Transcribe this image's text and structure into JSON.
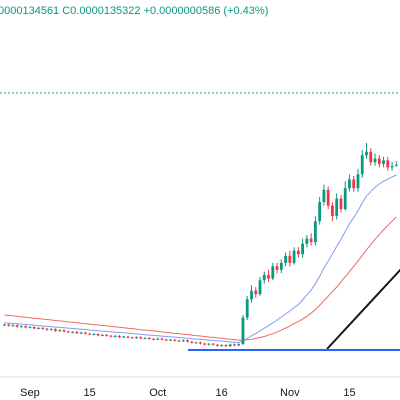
{
  "chart_data": {
    "type": "candlestick",
    "header": "0000134561 C0.0000135322 +0.0000000586 (+0.43%)",
    "categories": [
      null,
      null,
      null,
      null,
      null,
      null,
      "Sep",
      null,
      null,
      null,
      null,
      null,
      null,
      null,
      null,
      null,
      null,
      null,
      null,
      null,
      "15",
      null,
      null,
      null,
      null,
      null,
      null,
      null,
      null,
      null,
      null,
      null,
      null,
      null,
      null,
      null,
      "Oct",
      null,
      null,
      null,
      null,
      null,
      null,
      null,
      null,
      null,
      null,
      null,
      null,
      null,
      null,
      "16",
      null,
      null,
      null,
      null,
      null,
      null,
      null,
      null,
      null,
      null,
      null,
      null,
      null,
      null,
      null,
      "Nov",
      null,
      null,
      null,
      null,
      null,
      null,
      null,
      null,
      null,
      null,
      null,
      null,
      null,
      "15",
      null,
      null,
      null,
      null,
      null,
      null,
      null,
      null,
      null,
      null,
      null
    ],
    "open": [
      4.3e-06,
      4.35e-06,
      4.28e-06,
      4.31e-06,
      4.22e-06,
      4.25e-06,
      4.18e-06,
      4.2e-06,
      4.12e-06,
      4.15e-06,
      4.1e-06,
      4.05e-06,
      4.08e-06,
      3.98e-06,
      4.02e-06,
      3.95e-06,
      3.9e-06,
      3.92e-06,
      3.85e-06,
      3.88e-06,
      3.82e-06,
      3.78e-06,
      3.8e-06,
      3.72e-06,
      3.75e-06,
      3.7e-06,
      3.66e-06,
      3.69e-06,
      3.62e-06,
      3.65e-06,
      3.6e-06,
      3.58e-06,
      3.62e-06,
      3.55e-06,
      3.57e-06,
      3.52e-06,
      3.5e-06,
      3.54e-06,
      3.48e-06,
      3.45e-06,
      3.47e-06,
      3.42e-06,
      3.4e-06,
      3.44e-06,
      3.36e-06,
      3.3e-06,
      3.32e-06,
      3.25e-06,
      3.2e-06,
      3.24e-06,
      3.18e-06,
      3.12e-06,
      3.16e-06,
      3.1e-06,
      3.2e-06,
      3.15e-06,
      3.22e-06,
      4.75e-06,
      5.8e-06,
      6.3e-06,
      6.1e-06,
      6.9e-06,
      7.2e-06,
      7e-06,
      7.7e-06,
      7.5e-06,
      7.9e-06,
      8.3e-06,
      7.9e-06,
      8.6e-06,
      8.4e-06,
      9e-06,
      9.3e-06,
      9.1e-06,
      1.03e-05,
      1.14e-05,
      1.21e-05,
      1.12e-05,
      1.06e-05,
      1.16e-05,
      1.1e-05,
      1.22e-05,
      1.27e-05,
      1.22e-05,
      1.3e-05,
      1.41e-05,
      1.43e-05,
      1.37e-05,
      1.39e-05,
      1.36e-05,
      1.38e-05,
      1.34e-05,
      1.34736e-05
    ],
    "high": [
      4.4e-06,
      4.4e-06,
      4.36e-06,
      4.36e-06,
      4.3e-06,
      4.3e-06,
      4.25e-06,
      4.25e-06,
      4.2e-06,
      4.2e-06,
      4.15e-06,
      4.13e-06,
      4.13e-06,
      4.07e-06,
      4.07e-06,
      4e-06,
      3.97e-06,
      3.97e-06,
      3.93e-06,
      3.93e-06,
      3.87e-06,
      3.85e-06,
      3.85e-06,
      3.8e-06,
      3.8e-06,
      3.75e-06,
      3.74e-06,
      3.74e-06,
      3.7e-06,
      3.7e-06,
      3.65e-06,
      3.67e-06,
      3.67e-06,
      3.62e-06,
      3.62e-06,
      3.57e-06,
      3.59e-06,
      3.59e-06,
      3.53e-06,
      3.52e-06,
      3.52e-06,
      3.47e-06,
      3.49e-06,
      3.49e-06,
      3.41e-06,
      3.37e-06,
      3.37e-06,
      3.3e-06,
      3.29e-06,
      3.29e-06,
      3.23e-06,
      3.21e-06,
      3.21e-06,
      3.25e-06,
      3.25e-06,
      3.27e-06,
      4.9e-06,
      6e-06,
      6.6e-06,
      6.5e-06,
      7.1e-06,
      7.4e-06,
      7.5e-06,
      7.9e-06,
      7.9e-06,
      8.1e-06,
      8.5e-06,
      8.6e-06,
      8.8e-06,
      8.8e-06,
      9.3e-06,
      9.5e-06,
      9.6e-06,
      1.06e-05,
      1.17e-05,
      1.24e-05,
      1.23e-05,
      1.14e-05,
      1.19e-05,
      1.18e-05,
      1.26e-05,
      1.3e-05,
      1.29e-05,
      1.33e-05,
      1.44e-05,
      1.48e-05,
      1.45e-05,
      1.42e-05,
      1.41e-05,
      1.4e-05,
      1.4e-05,
      1.37e-05,
      1.375e-05
    ],
    "low": [
      4.25e-06,
      4.23e-06,
      4.23e-06,
      4.17e-06,
      4.17e-06,
      4.13e-06,
      4.13e-06,
      4.07e-06,
      4.07e-06,
      4.05e-06,
      4e-06,
      4e-06,
      3.93e-06,
      3.93e-06,
      3.9e-06,
      3.85e-06,
      3.85e-06,
      3.8e-06,
      3.8e-06,
      3.77e-06,
      3.73e-06,
      3.73e-06,
      3.67e-06,
      3.67e-06,
      3.65e-06,
      3.61e-06,
      3.61e-06,
      3.57e-06,
      3.57e-06,
      3.55e-06,
      3.53e-06,
      3.53e-06,
      3.5e-06,
      3.5e-06,
      3.47e-06,
      3.45e-06,
      3.45e-06,
      3.43e-06,
      3.4e-06,
      3.4e-06,
      3.37e-06,
      3.35e-06,
      3.35e-06,
      3.31e-06,
      3.25e-06,
      3.25e-06,
      3.2e-06,
      3.15e-06,
      3.15e-06,
      3.13e-06,
      3.07e-06,
      3.07e-06,
      3.05e-06,
      3.05e-06,
      3.1e-06,
      3.1e-06,
      3.18e-06,
      4.6e-06,
      5.6e-06,
      5.9e-06,
      6e-06,
      6.7e-06,
      6.8e-06,
      6.9e-06,
      7.3e-06,
      7.3e-06,
      7.7e-06,
      7.7e-06,
      7.8e-06,
      8.2e-06,
      8.2e-06,
      8.8e-06,
      8.9e-06,
      8.9e-06,
      1.01e-05,
      1.12e-05,
      1.1e-05,
      1.03e-05,
      1.04e-05,
      1.08e-05,
      1.09e-05,
      1.2e-05,
      1.2e-05,
      1.2e-05,
      1.28e-05,
      1.39e-05,
      1.35e-05,
      1.35e-05,
      1.34e-05,
      1.34e-05,
      1.32e-05,
      1.32e-05,
      1.34561e-05
    ],
    "close": [
      4.35e-06,
      4.28e-06,
      4.31e-06,
      4.22e-06,
      4.25e-06,
      4.18e-06,
      4.2e-06,
      4.12e-06,
      4.15e-06,
      4.1e-06,
      4.05e-06,
      4.08e-06,
      3.98e-06,
      4.02e-06,
      3.95e-06,
      3.9e-06,
      3.92e-06,
      3.85e-06,
      3.88e-06,
      3.82e-06,
      3.78e-06,
      3.8e-06,
      3.72e-06,
      3.75e-06,
      3.7e-06,
      3.66e-06,
      3.69e-06,
      3.62e-06,
      3.65e-06,
      3.6e-06,
      3.58e-06,
      3.62e-06,
      3.55e-06,
      3.57e-06,
      3.52e-06,
      3.5e-06,
      3.54e-06,
      3.48e-06,
      3.45e-06,
      3.47e-06,
      3.42e-06,
      3.4e-06,
      3.44e-06,
      3.36e-06,
      3.3e-06,
      3.32e-06,
      3.25e-06,
      3.2e-06,
      3.24e-06,
      3.18e-06,
      3.12e-06,
      3.16e-06,
      3.1e-06,
      3.2e-06,
      3.15e-06,
      3.22e-06,
      4.75e-06,
      5.8e-06,
      6.3e-06,
      6.1e-06,
      6.9e-06,
      7.2e-06,
      7e-06,
      7.7e-06,
      7.5e-06,
      7.9e-06,
      8.3e-06,
      7.9e-06,
      8.6e-06,
      8.4e-06,
      9e-06,
      9.3e-06,
      9.1e-06,
      1.03e-05,
      1.14e-05,
      1.21e-05,
      1.12e-05,
      1.06e-05,
      1.16e-05,
      1.1e-05,
      1.22e-05,
      1.27e-05,
      1.22e-05,
      1.3e-05,
      1.41e-05,
      1.43e-05,
      1.37e-05,
      1.39e-05,
      1.36e-05,
      1.38e-05,
      1.34e-05,
      1.34736e-05,
      1.35322e-05
    ],
    "up_color": "#089981",
    "down_color": "#f23645",
    "moving_averages": [
      {
        "color": "#7e9ef0",
        "values": [
          4.45e-06,
          4.43e-06,
          4.41e-06,
          4.39e-06,
          4.37e-06,
          4.35e-06,
          4.33e-06,
          4.31e-06,
          4.28e-06,
          4.26e-06,
          4.24e-06,
          4.22e-06,
          4.2e-06,
          4.18e-06,
          4.16e-06,
          4.14e-06,
          4.12e-06,
          4.1e-06,
          4.08e-06,
          4.06e-06,
          4.03e-06,
          4.01e-06,
          3.99e-06,
          3.97e-06,
          3.95e-06,
          3.93e-06,
          3.91e-06,
          3.89e-06,
          3.87e-06,
          3.85e-06,
          3.83e-06,
          3.81e-06,
          3.78e-06,
          3.76e-06,
          3.74e-06,
          3.72e-06,
          3.7e-06,
          3.68e-06,
          3.66e-06,
          3.64e-06,
          3.62e-06,
          3.6e-06,
          3.58e-06,
          3.56e-06,
          3.53e-06,
          3.51e-06,
          3.49e-06,
          3.47e-06,
          3.45e-06,
          3.43e-06,
          3.41e-06,
          3.39e-06,
          3.37e-06,
          3.35e-06,
          3.33e-06,
          3.31e-06,
          3.4e-06,
          3.55e-06,
          3.7e-06,
          3.83e-06,
          3.98e-06,
          4.14e-06,
          4.28e-06,
          4.45e-06,
          4.6e-06,
          4.78e-06,
          4.96e-06,
          5.12e-06,
          5.32e-06,
          5.5e-06,
          5.76e-06,
          6.05e-06,
          6.33e-06,
          6.7e-06,
          7.12e-06,
          7.6e-06,
          8e-06,
          8.4e-06,
          8.85e-06,
          9.25e-06,
          9.7e-06,
          1.015e-05,
          1.05e-05,
          1.09e-05,
          1.135e-05,
          1.175e-05,
          1.2e-05,
          1.225e-05,
          1.245e-05,
          1.26e-05,
          1.272e-05,
          1.285e-05,
          1.296e-05
        ]
      },
      {
        "color": "#f0676a",
        "values": [
          4.9e-06,
          4.87e-06,
          4.85e-06,
          4.82e-06,
          4.79e-06,
          4.77e-06,
          4.74e-06,
          4.71e-06,
          4.69e-06,
          4.66e-06,
          4.64e-06,
          4.61e-06,
          4.58e-06,
          4.56e-06,
          4.53e-06,
          4.5e-06,
          4.48e-06,
          4.45e-06,
          4.42e-06,
          4.4e-06,
          4.37e-06,
          4.34e-06,
          4.32e-06,
          4.29e-06,
          4.27e-06,
          4.24e-06,
          4.21e-06,
          4.19e-06,
          4.16e-06,
          4.13e-06,
          4.11e-06,
          4.08e-06,
          4.05e-06,
          4.03e-06,
          4e-06,
          3.98e-06,
          3.95e-06,
          3.92e-06,
          3.9e-06,
          3.87e-06,
          3.84e-06,
          3.82e-06,
          3.79e-06,
          3.77e-06,
          3.74e-06,
          3.71e-06,
          3.69e-06,
          3.66e-06,
          3.63e-06,
          3.61e-06,
          3.58e-06,
          3.56e-06,
          3.53e-06,
          3.5e-06,
          3.48e-06,
          3.45e-06,
          3.45e-06,
          3.47e-06,
          3.5e-06,
          3.54e-06,
          3.6e-06,
          3.66e-06,
          3.74e-06,
          3.82e-06,
          3.92e-06,
          4.02e-06,
          4.14e-06,
          4.26e-06,
          4.4e-06,
          4.52e-06,
          4.66e-06,
          4.82e-06,
          5e-06,
          5.22e-06,
          5.45e-06,
          5.72e-06,
          5.98e-06,
          6.24e-06,
          6.5e-06,
          6.8e-06,
          7.1e-06,
          7.4e-06,
          7.7e-06,
          8e-06,
          8.32e-06,
          8.65e-06,
          8.95e-06,
          9.25e-06,
          9.52e-06,
          9.8e-06,
          1.005e-05,
          1.03e-05,
          1.055e-05
        ]
      }
    ],
    "hlines": [
      {
        "value": 1.768e-05,
        "color": "#26a69a",
        "style": "dashed"
      },
      {
        "value": 2.88e-06,
        "color": "#2962ff",
        "style": "solid"
      }
    ],
    "ylim": [
      1.44e-06,
      2.304e-05
    ],
    "grid": false
  }
}
